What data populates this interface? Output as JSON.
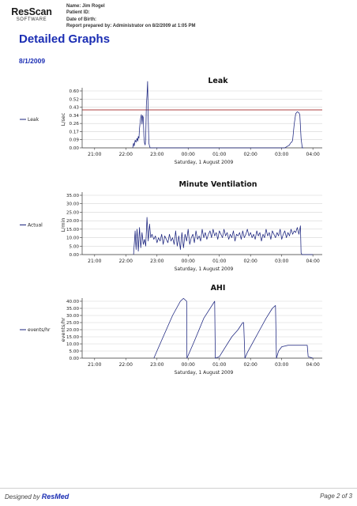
{
  "header": {
    "logo_main": "ResScan",
    "logo_sub": "SOFTWARE",
    "name_line": "Name:  Jim Rogel",
    "patient_id_line": "Patient ID:",
    "dob_line": "Date of Birth:",
    "prepared_line": "Report prepared by: Administrator on 8/2/2009 at 1:05 PM"
  },
  "report": {
    "title": "Detailed Graphs",
    "date": "8/1/2009"
  },
  "footer": {
    "designed_by": "Designed by ",
    "brand": "ResMed",
    "page": "Page 2 of 3"
  },
  "colors": {
    "line": "#1a237e",
    "threshold": "#c88080",
    "title": "#1a2db3",
    "grid": "#d5d5d5"
  },
  "chart_data": [
    {
      "type": "line",
      "title": "Leak",
      "ylabel": "L/sec",
      "xlabel": "Saturday, 1 August 2009",
      "legend": "Leak",
      "ylim": [
        0,
        0.6
      ],
      "yticks": [
        "0.00",
        "0.09",
        "0.17",
        "0.26",
        "0.34",
        "0.43",
        "0.52",
        "0.60"
      ],
      "xticks": [
        "21:00",
        "22:00",
        "23:00",
        "00:00",
        "01:00",
        "02:00",
        "03:00",
        "04:00"
      ],
      "xrange": [
        20.6,
        28.3
      ],
      "threshold": 0.4,
      "series": [
        {
          "x": [
            22.22,
            22.25,
            22.27,
            22.3,
            22.33,
            22.36,
            22.38,
            22.4,
            22.42,
            22.44,
            22.47,
            22.5,
            22.52,
            22.54,
            22.56,
            22.58,
            22.6,
            22.62,
            22.64,
            22.66,
            22.68,
            22.7,
            22.72,
            22.74,
            22.76,
            22.78,
            22.8,
            22.82,
            22.84,
            22.86,
            27.1,
            27.15,
            27.2,
            27.25,
            27.28,
            27.32,
            27.35,
            27.4,
            27.45,
            27.5,
            27.55,
            27.58,
            27.62,
            27.66,
            27.7
          ],
          "y": [
            0,
            0.05,
            0.02,
            0.08,
            0.06,
            0.1,
            0.07,
            0.12,
            0.1,
            0.2,
            0.3,
            0.35,
            0.25,
            0.34,
            0.32,
            0.12,
            0.05,
            0.03,
            0.1,
            0.45,
            0.55,
            0.7,
            0.3,
            0.05,
            0.02,
            0,
            0,
            0,
            0,
            0,
            0,
            0.01,
            0.02,
            0.03,
            0.05,
            0.06,
            0.08,
            0.25,
            0.36,
            0.38,
            0.37,
            0.35,
            0.1,
            0,
            0
          ]
        }
      ]
    },
    {
      "type": "line",
      "title": "Minute Ventilation",
      "ylabel": "L/min",
      "xlabel": "Saturday, 1 August 2009",
      "legend": "Actual",
      "ylim": [
        0,
        35
      ],
      "yticks": [
        "0.00",
        "5.00",
        "10.00",
        "15.00",
        "20.00",
        "25.00",
        "30.00",
        "35.00"
      ],
      "xticks": [
        "21:00",
        "22:00",
        "23:00",
        "00:00",
        "01:00",
        "02:00",
        "03:00",
        "04:00"
      ],
      "xrange": [
        20.6,
        28.3
      ],
      "series": [
        {
          "x": [
            22.25,
            22.3,
            22.33,
            22.36,
            22.4,
            22.44,
            22.48,
            22.52,
            22.56,
            22.6,
            22.64,
            22.68,
            22.72,
            22.76,
            22.8,
            22.84,
            22.9,
            22.95,
            23.0,
            23.05,
            23.1,
            23.15,
            23.2,
            23.25,
            23.3,
            23.35,
            23.4,
            23.45,
            23.5,
            23.55,
            23.6,
            23.65,
            23.7,
            23.75,
            23.8,
            23.85,
            23.9,
            23.95,
            24.0,
            24.05,
            24.1,
            24.15,
            24.2,
            24.25,
            24.3,
            24.35,
            24.4,
            24.45,
            24.5,
            24.55,
            24.6,
            24.65,
            24.7,
            24.75,
            24.8,
            24.85,
            24.9,
            24.95,
            25.0,
            25.05,
            25.1,
            25.15,
            25.2,
            25.25,
            25.3,
            25.35,
            25.4,
            25.45,
            25.5,
            25.55,
            25.6,
            25.65,
            25.7,
            25.75,
            25.8,
            25.85,
            25.9,
            25.95,
            26.0,
            26.05,
            26.1,
            26.15,
            26.2,
            26.25,
            26.3,
            26.35,
            26.4,
            26.45,
            26.5,
            26.55,
            26.6,
            26.65,
            26.7,
            26.75,
            26.8,
            26.85,
            26.9,
            26.95,
            27.0,
            27.05,
            27.1,
            27.15,
            27.2,
            27.25,
            27.3,
            27.35,
            27.4,
            27.45,
            27.5,
            27.55,
            27.6,
            27.62,
            27.65,
            27.7,
            28.0
          ],
          "y": [
            0,
            14,
            3,
            15,
            2,
            16,
            4,
            13,
            6,
            9,
            5,
            22,
            8,
            18,
            10,
            12,
            9,
            11,
            7,
            10,
            8,
            12,
            6,
            11,
            9,
            7,
            12,
            8,
            10,
            6,
            14,
            5,
            11,
            3,
            13,
            4,
            12,
            8,
            15,
            6,
            10,
            12,
            7,
            14,
            9,
            11,
            8,
            15,
            10,
            13,
            9,
            12,
            14,
            10,
            15,
            11,
            13,
            9,
            14,
            12,
            10,
            15,
            11,
            13,
            9,
            12,
            10,
            14,
            8,
            12,
            11,
            13,
            9,
            14,
            10,
            12,
            15,
            11,
            13,
            10,
            12,
            9,
            14,
            11,
            13,
            8,
            12,
            10,
            15,
            11,
            13,
            9,
            14,
            12,
            10,
            13,
            11,
            15,
            9,
            12,
            14,
            10,
            13,
            11,
            15,
            12,
            14,
            13,
            16,
            12,
            17,
            1,
            0,
            0,
            0
          ]
        }
      ]
    },
    {
      "type": "line",
      "title": "AHI",
      "ylabel": "events/hr",
      "xlabel": "Saturday, 1 August 2009",
      "legend": "events/hr",
      "ylim": [
        0,
        40
      ],
      "yticks": [
        "0.00",
        "5.00",
        "10.00",
        "15.00",
        "20.00",
        "25.00",
        "30.00",
        "35.00",
        "40.00"
      ],
      "xticks": [
        "21:00",
        "22:00",
        "23:00",
        "00:00",
        "01:00",
        "02:00",
        "03:00",
        "04:00"
      ],
      "xrange": [
        20.6,
        28.3
      ],
      "series": [
        {
          "x": [
            22.9,
            23.2,
            23.5,
            23.75,
            23.85,
            23.95,
            23.96,
            24.2,
            24.5,
            24.85,
            24.87,
            25.0,
            25.2,
            25.4,
            25.6,
            25.75,
            25.78,
            25.82,
            25.9,
            26.1,
            26.3,
            26.5,
            26.7,
            26.8,
            26.83,
            26.9,
            27.0,
            27.2,
            27.5,
            27.82,
            27.85,
            28.0
          ],
          "y": [
            0,
            15,
            30,
            40,
            42,
            40,
            0,
            12,
            28,
            40,
            0,
            1,
            8,
            15,
            20,
            25,
            25,
            0,
            4,
            12,
            20,
            28,
            35,
            37,
            0,
            5,
            8,
            9,
            9,
            9,
            1,
            0
          ]
        }
      ]
    }
  ]
}
